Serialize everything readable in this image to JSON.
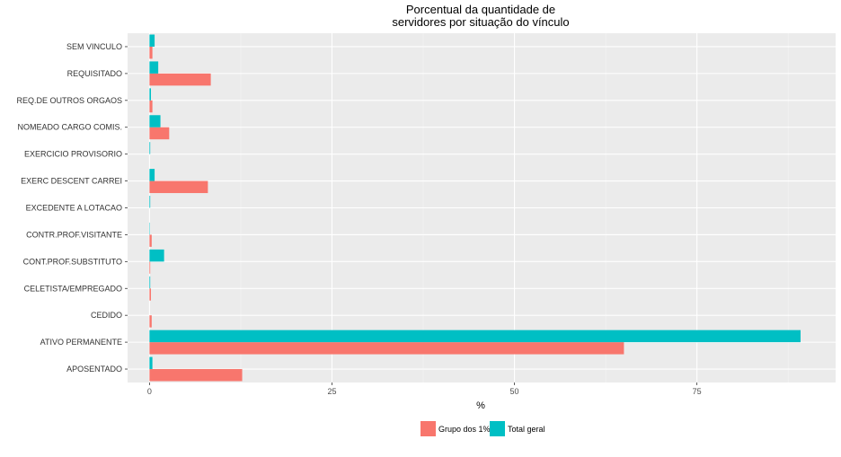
{
  "chart_data": {
    "type": "bar",
    "orientation": "horizontal",
    "title_lines": [
      "Porcentual da quantidade de",
      "servidores por situação do vínculo"
    ],
    "xlabel": "%",
    "ylabel": "",
    "xlim": [
      -3,
      94
    ],
    "xticks": [
      0,
      25,
      50,
      75
    ],
    "xtick_labels": [
      "0",
      "25",
      "50",
      "75"
    ],
    "grid": true,
    "legend_position": "bottom",
    "categories": [
      "APOSENTADO",
      "ATIVO PERMANENTE",
      "CEDIDO",
      "CELETISTA/EMPREGADO",
      "CONT.PROF.SUBSTITUTO",
      "CONTR.PROF.VISITANTE",
      "EXCEDENTE A LOTACAO",
      "EXERC DESCENT CARREI",
      "EXERCICIO PROVISORIO",
      "NOMEADO CARGO COMIS.",
      "REQ.DE OUTROS ORGAOS",
      "REQUISITADO",
      "SEM VINCULO"
    ],
    "series": [
      {
        "name": "Grupo dos 1%",
        "color": "#F8766D",
        "values": [
          12.7,
          65.0,
          0.3,
          0.2,
          0.1,
          0.3,
          0.0,
          8.0,
          0.0,
          2.7,
          0.4,
          8.4,
          0.4
        ]
      },
      {
        "name": "Total geral",
        "color": "#00BFC4",
        "values": [
          0.4,
          89.2,
          0.0,
          0.1,
          2.0,
          0.05,
          0.1,
          0.7,
          0.1,
          1.5,
          0.2,
          1.2,
          0.7
        ]
      }
    ]
  }
}
